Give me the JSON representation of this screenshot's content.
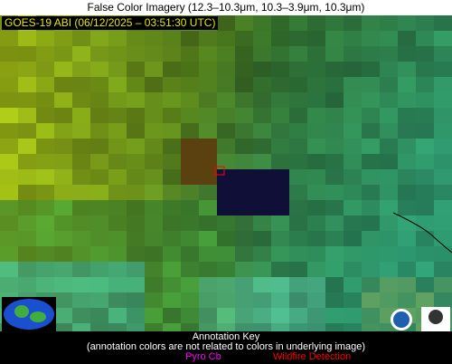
{
  "header": {
    "title": "False Color Imagery (12.3–10.3μm, 10.3–3.9μm, 10.3μm)"
  },
  "overlay": {
    "label": "GOES-19 ABI (06/12/2025 – 03:51:30 UTC)"
  },
  "key": {
    "title": "Annotation Key",
    "note": "(annotation colors are not related to colors in underlying image)",
    "items": [
      "Pyro Cb",
      "Wildfire Detection"
    ]
  }
}
